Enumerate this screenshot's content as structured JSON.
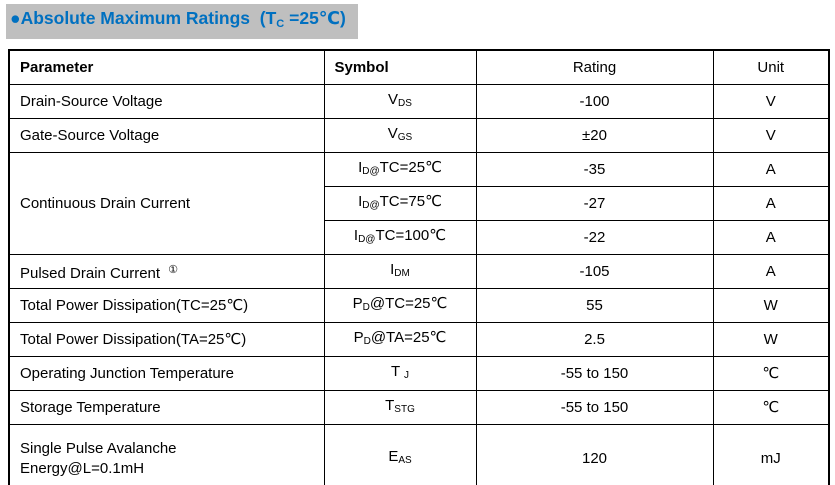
{
  "colors": {
    "title_text": "#0070c0",
    "title_background": "#bfbfbf",
    "table_border": "#000000"
  },
  "title": {
    "main": "●Absolute Maximum Ratings  (T",
    "sub": "C",
    "tail": " =25℃)"
  },
  "table": {
    "headers": [
      "Parameter",
      "Symbol",
      "Rating",
      "Unit"
    ],
    "rows": [
      {
        "parameter": "Drain-Source Voltage",
        "symbol": {
          "base": "V",
          "sub": "DS",
          "post": ""
        },
        "rating": "-100",
        "unit": "V"
      },
      {
        "parameter": "Gate-Source Voltage",
        "symbol": {
          "base": "V",
          "sub": "GS",
          "post": ""
        },
        "rating": "±20",
        "unit": "V"
      },
      {
        "parameter": "Continuous Drain Current",
        "rowspan": 3,
        "symbol": {
          "base": "I",
          "sub": "D@",
          "post": "TC=25℃"
        },
        "rating": "-35",
        "unit": "A"
      },
      {
        "symbol": {
          "base": "I",
          "sub": "D@",
          "post": "TC=75℃"
        },
        "rating": "-27",
        "unit": "A"
      },
      {
        "symbol": {
          "base": "I",
          "sub": "D@",
          "post": "TC=100℃"
        },
        "rating": "-22",
        "unit": "A"
      },
      {
        "parameter": "Pulsed Drain Current",
        "note": "①",
        "symbol": {
          "base": "I",
          "sub": "DM",
          "post": ""
        },
        "rating": "-105",
        "unit": "A"
      },
      {
        "parameter": "Total Power Dissipation(TC=25℃)",
        "symbol": {
          "base": "P",
          "sub": "D",
          "post": "@TC=25℃"
        },
        "rating": "55",
        "unit": "W"
      },
      {
        "parameter": "Total Power Dissipation(TA=25℃)",
        "symbol": {
          "base": "P",
          "sub": "D",
          "post": "@TA=25℃"
        },
        "rating": "2.5",
        "unit": "W"
      },
      {
        "parameter": "Operating Junction Temperature",
        "symbol": {
          "base": "T ",
          "sub": "J",
          "post": ""
        },
        "rating": "-55 to 150",
        "unit": "℃"
      },
      {
        "parameter": "Storage Temperature",
        "symbol": {
          "base": "T",
          "sub": "STG",
          "post": ""
        },
        "rating": "-55 to 150",
        "unit": "℃"
      },
      {
        "parameter": "Single Pulse Avalanche\nEnergy@L=0.1mH",
        "symbol": {
          "base": "E",
          "sub": "AS",
          "post": ""
        },
        "rating": "120",
        "unit": "mJ"
      }
    ]
  }
}
